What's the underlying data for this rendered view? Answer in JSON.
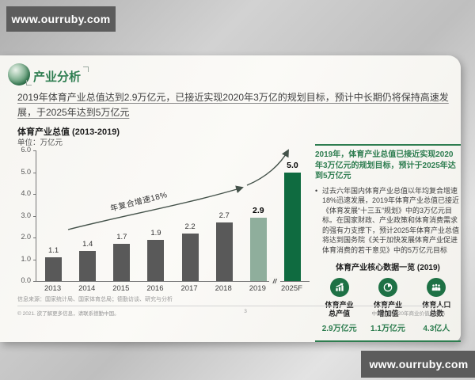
{
  "watermark": {
    "text": "www.ourruby.com"
  },
  "colors": {
    "accent_green": "#2E7D50",
    "dark_green_bar": "#0F6B40",
    "light_green_bar": "#8FAE9C",
    "gray_bar": "#595959",
    "icon_circle_green": "#1E7145"
  },
  "slide": {
    "title": "产业分析",
    "subtitle": "2019年体育产业总值达到2.9万亿元，已接近实现2020年3万亿的规划目标，预计中长期仍将保持高速发展，于2025年达到5万亿元",
    "right_panel": {
      "headline": "2019年，体育产业总值已接近实现2020年3万亿元的规划目标，预计于2025年达到5万亿元",
      "bullet_mark": "•",
      "bullet": "过去六年国内体育产业总值以年均复合增速18%迅速发展，2019年体育产业总值已接近《体育发展“十三五”规划》中的3万亿元目标。在国家财政、产业政策和体育消费需求的强有力支撑下，预计2025年体育产业总值将达到国务院《关于加快发展体育产业促进体育消费的若干意见》中的5万亿元目标",
      "stats_title": "体育产业核心数据一览 (2019)",
      "stats": [
        {
          "icon": "growth-chart-icon",
          "label1": "体育产业",
          "label2": "总产值",
          "value": "2.9万亿元"
        },
        {
          "icon": "pie-chart-icon",
          "label1": "体育产业",
          "label2": "增加值",
          "value": "1.1万亿元"
        },
        {
          "icon": "people-icon",
          "label1": "体育人口",
          "label2": "总数",
          "value": "4.3亿人"
        }
      ]
    },
    "footer": {
      "source": "信息来源：国家统计局、国家体育总局；德勤访谈、研究与分析",
      "copyright": "© 2021. 欲了解更多信息，请联系德勤中国。",
      "page": "3",
      "doc_title": "中国冰雪2020年商业价值白皮书"
    }
  },
  "chart_data": {
    "type": "bar",
    "title": "体育产业总值 (2013-2019)",
    "unit_label": "单位：万亿元",
    "categories": [
      "2013",
      "2014",
      "2015",
      "2016",
      "2017",
      "2018",
      "2019",
      "2025F"
    ],
    "values": [
      1.1,
      1.4,
      1.7,
      1.9,
      2.2,
      2.7,
      2.9,
      5.0
    ],
    "colors": [
      "#595959",
      "#595959",
      "#595959",
      "#595959",
      "#595959",
      "#595959",
      "#8FAE9C",
      "#0F6B40"
    ],
    "emphasis": [
      false,
      false,
      false,
      false,
      false,
      false,
      true,
      true
    ],
    "ylim": [
      0,
      6
    ],
    "yticks": [
      0.0,
      1.0,
      2.0,
      3.0,
      4.0,
      5.0,
      6.0
    ],
    "annotation": "年复合增速18%",
    "axis_break_symbol": "//",
    "grid": false,
    "legend": false
  }
}
